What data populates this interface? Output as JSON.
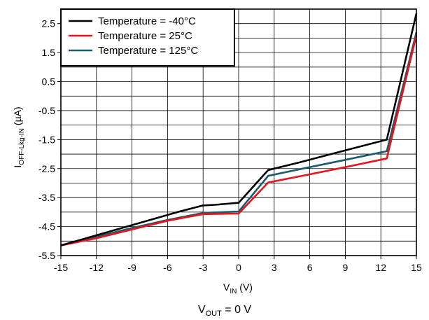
{
  "chart_data": {
    "type": "line",
    "title": "",
    "xlabel": {
      "main": "V",
      "sub": "IN",
      "unit": " (V)"
    },
    "ylabel": {
      "main": "I",
      "sub": "OFF-Lkg-IN",
      "unit": " (µA)"
    },
    "caption": {
      "main": "V",
      "sub": "OUT",
      "rest": " = 0 V"
    },
    "xlim": [
      -15,
      15
    ],
    "ylim": [
      -5.5,
      3
    ],
    "xticks": [
      "-15",
      "-12",
      "-9",
      "-6",
      "-3",
      "0",
      "3",
      "6",
      "9",
      "12",
      "15"
    ],
    "yticks": [
      "-5.5",
      "-4.5",
      "-3.5",
      "-2.5",
      "-1.5",
      "-0.5",
      "0.5",
      "1.5",
      "2.5"
    ],
    "grid": true,
    "legend_position": "top-left",
    "series": [
      {
        "name": "Temperature = -40°C",
        "color": "#000000",
        "x": [
          -15,
          -12,
          -9,
          -6,
          -5,
          -3,
          -2,
          0,
          2.5,
          5,
          9,
          12.5,
          15
        ],
        "y": [
          -5.15,
          -4.8,
          -4.45,
          -4.1,
          -3.98,
          -3.77,
          -3.75,
          -3.68,
          -2.55,
          -2.3,
          -1.87,
          -1.5,
          2.85
        ]
      },
      {
        "name": "Temperature = 25°C",
        "color": "#e8141c",
        "x": [
          -15,
          -12,
          -9,
          -6,
          -3,
          0,
          2.5,
          6,
          9,
          12.5,
          15
        ],
        "y": [
          -5.15,
          -4.9,
          -4.6,
          -4.3,
          -4.07,
          -4.05,
          -2.98,
          -2.7,
          -2.45,
          -2.15,
          2.1
        ]
      },
      {
        "name": "Temperature = 125°C",
        "color": "#1a5a6e",
        "x": [
          -15,
          -12,
          -9,
          -6,
          -3,
          0,
          2.5,
          6,
          9,
          12.5,
          15
        ],
        "y": [
          -5.15,
          -4.85,
          -4.55,
          -4.27,
          -4.03,
          -3.98,
          -2.75,
          -2.45,
          -2.2,
          -1.9,
          2.2
        ]
      }
    ]
  }
}
